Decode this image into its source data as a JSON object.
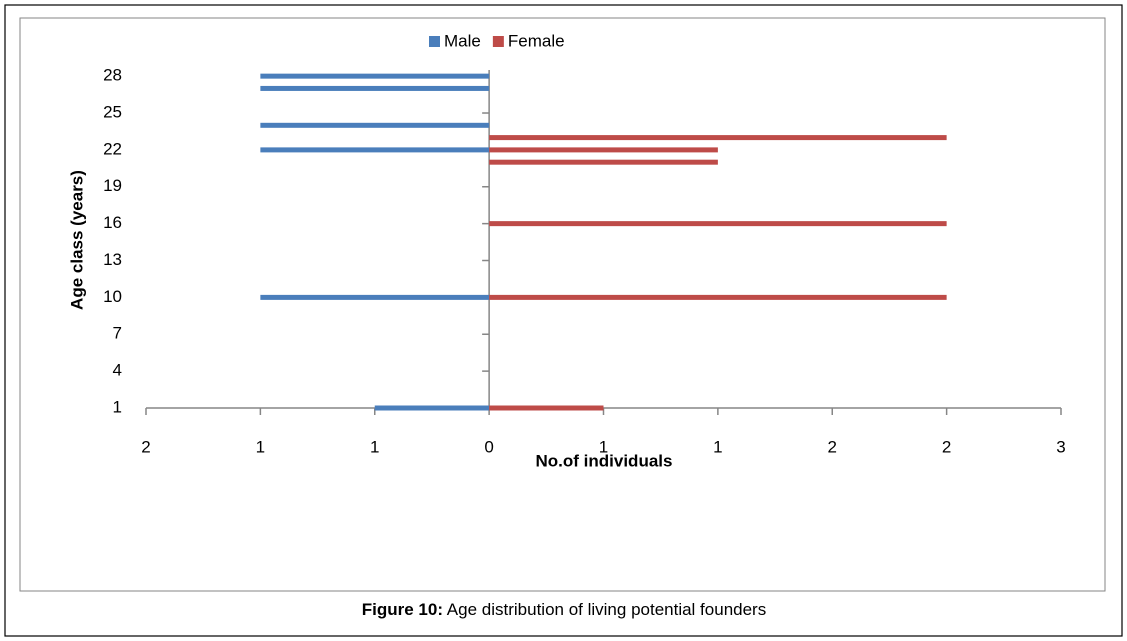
{
  "chart_data": {
    "type": "bar",
    "orientation": "horizontal",
    "xlabel": "No.of individuals",
    "ylabel": "Age class (years)",
    "categories": [
      1,
      10,
      16,
      21,
      22,
      23,
      24,
      27,
      28
    ],
    "series": [
      {
        "name": "Male",
        "color": "#4a7ebb",
        "values": [
          -0.5,
          -1,
          null,
          null,
          -1,
          null,
          -1,
          -1,
          -1
        ]
      },
      {
        "name": "Female",
        "color": "#be4b48",
        "values": [
          0.5,
          2,
          2,
          1,
          1,
          2,
          null,
          null,
          null
        ]
      }
    ],
    "xlim": [
      -1.5,
      2.5
    ],
    "xticks": [
      {
        "value": -1.5,
        "label": "2"
      },
      {
        "value": -1,
        "label": "1"
      },
      {
        "value": -0.5,
        "label": "1"
      },
      0,
      {
        "value": 0.5,
        "label": "1"
      },
      {
        "value": 1,
        "label": "1"
      },
      {
        "value": 1.5,
        "label": "2"
      },
      {
        "value": 2,
        "label": "2"
      },
      {
        "value": 2.5,
        "label": "3"
      }
    ],
    "ylim": [
      1,
      28.5
    ],
    "yticks": [
      1,
      4,
      7,
      10,
      13,
      16,
      19,
      22,
      25,
      28
    ],
    "legend": "top"
  },
  "caption": {
    "label": "Figure 10:",
    "text": "Age distribution of living potential founders"
  }
}
